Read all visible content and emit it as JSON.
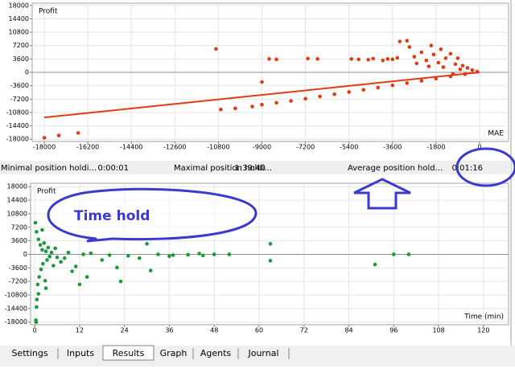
{
  "chart_data": [
    {
      "type": "scatter",
      "y_label": "Profit",
      "x_label": "MAE",
      "xlim": [
        -18500,
        1200
      ],
      "ylim": [
        -18600,
        18600
      ],
      "xticks": [
        -18000,
        -16200,
        -14400,
        -12600,
        -10800,
        -9000,
        -7200,
        -5400,
        -3600,
        -1800,
        0
      ],
      "yticks": [
        18000,
        14400,
        10800,
        7200,
        3600,
        0,
        -3600,
        -7200,
        -10800,
        -14400,
        -18000
      ],
      "grid": true,
      "series": [
        {
          "color": "#e03c14",
          "x": [
            -18000,
            -17400,
            -16600,
            -10900,
            -10700,
            -10100,
            -9400,
            -9000,
            -8700,
            -8400,
            -7100,
            -6700,
            -9000,
            -8400,
            -7800,
            -7200,
            -6600,
            -6000,
            -5400,
            -4800,
            -4200,
            -3600,
            -3000,
            -2400,
            -1800,
            -1200,
            -600,
            -4000,
            -3800,
            -3600,
            -3400,
            -3300,
            -3000,
            -2900,
            -2700,
            -2400,
            -2200,
            -2000,
            -1900,
            -1700,
            -1600,
            -1400,
            -1200,
            -1000,
            -900,
            -700,
            -500,
            -300,
            -100,
            -5300,
            -5000,
            -4600,
            -4400,
            -1500,
            -800,
            -2600,
            -2100,
            -1100
          ],
          "values": [
            -17600,
            -17000,
            -16300,
            6300,
            -10000,
            -9700,
            -9200,
            -2600,
            3600,
            3500,
            3700,
            3600,
            -8700,
            -8200,
            -7700,
            -7100,
            -6500,
            -5900,
            -5300,
            -4700,
            -4100,
            -3500,
            -2900,
            -2300,
            -1700,
            -1100,
            -500,
            3200,
            3600,
            3500,
            3900,
            8300,
            8500,
            6800,
            4200,
            5400,
            3200,
            7200,
            4800,
            2600,
            6200,
            3800,
            5000,
            2200,
            3800,
            1800,
            1200,
            600,
            200,
            3600,
            3500,
            3400,
            3700,
            1400,
            800,
            2400,
            1600,
            -400
          ]
        }
      ],
      "fit_line": {
        "color": "#e03c14",
        "x": [
          -18000,
          0
        ],
        "values": [
          -12150,
          0
        ]
      }
    },
    {
      "type": "scatter",
      "y_label": "Profit",
      "x_label": "Time (min)",
      "xlim": [
        -1.1,
        126.7
      ],
      "ylim": [
        -18700,
        18900
      ],
      "xticks": [
        0,
        12,
        24,
        36,
        48,
        60,
        72,
        84,
        96,
        108,
        120
      ],
      "yticks": [
        18000,
        14400,
        10800,
        7200,
        3600,
        0,
        -3600,
        -7200,
        -10800,
        -14400,
        -18000
      ],
      "grid": true,
      "series": [
        {
          "color": "#1a9a3a",
          "x": [
            0.2,
            0.3,
            0.4,
            0.5,
            0.6,
            0.8,
            1,
            1.2,
            1.5,
            1.7,
            2,
            2.2,
            2.5,
            2.8,
            3,
            3.3,
            3.6,
            4,
            4.5,
            5,
            5.5,
            6,
            7,
            8,
            9,
            10,
            11,
            12,
            13,
            14,
            15,
            18,
            20,
            22,
            23,
            25,
            28,
            30,
            31,
            33,
            36,
            37,
            41,
            44,
            45,
            48,
            52,
            63,
            63,
            91,
            96,
            100,
            2,
            1,
            3,
            0.5
          ],
          "values": [
            8400,
            -17500,
            -18000,
            6000,
            -12000,
            -8000,
            4000,
            -6000,
            2500,
            -4000,
            1200,
            -2500,
            3000,
            -7000,
            800,
            -1500,
            1800,
            -600,
            500,
            -3000,
            1600,
            -800,
            -2000,
            -1000,
            500,
            -4500,
            -3200,
            -8000,
            0,
            -6000,
            300,
            -1500,
            -200,
            -3500,
            -7200,
            -400,
            -1000,
            2800,
            -4300,
            0,
            -500,
            -200,
            -100,
            200,
            -300,
            0,
            0,
            2800,
            -1700,
            -2700,
            0,
            0,
            6500,
            -10500,
            -9000,
            -14000
          ]
        }
      ]
    }
  ],
  "stats": [
    {
      "label": "Minimal position holdi...",
      "value": "0:00:01"
    },
    {
      "label": "Maximal position holdi...",
      "value": "1:39:40"
    },
    {
      "label": "Average position hold...",
      "value": "0:01:16"
    }
  ],
  "annotation": {
    "label": "Time hold"
  },
  "tabs": [
    "Settings",
    "Inputs",
    "Results",
    "Graph",
    "Agents",
    "Journal"
  ],
  "selected_tab": 2
}
